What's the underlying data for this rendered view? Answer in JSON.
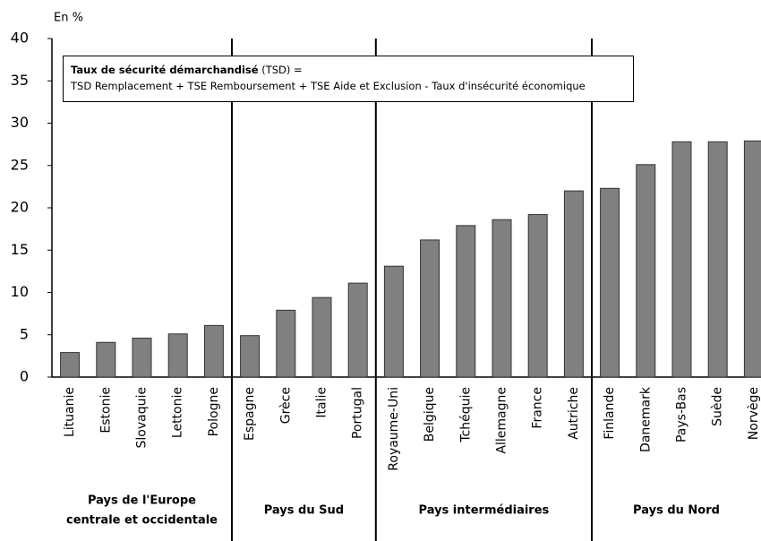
{
  "chart_data": {
    "type": "bar",
    "y_unit_label": "En %",
    "annotation": {
      "title": "Taux de sécurité démarchandisé",
      "title_suffix": "(TSD) =",
      "formula": "TSD Remplacement + TSE Remboursement + TSE Aide et Exclusion - Taux d'insécurité économique"
    },
    "categories": [
      "Lituanie",
      "Estonie",
      "Slovaquie",
      "Lettonie",
      "Pologne",
      "Espagne",
      "Grèce",
      "Italie",
      "Portugal",
      "Royaume-Uni",
      "Belgique",
      "Tchéquie",
      "Allemagne",
      "France",
      "Autriche",
      "Finlande",
      "Danemark",
      "Pays-Bas",
      "Suède",
      "Norvège"
    ],
    "values": [
      2.9,
      4.1,
      4.6,
      5.1,
      6.1,
      4.9,
      7.9,
      9.4,
      11.1,
      13.1,
      16.2,
      17.9,
      18.6,
      19.2,
      22.0,
      22.3,
      25.1,
      27.8,
      27.8,
      27.9
    ],
    "groups": [
      {
        "name": [
          "Pays de l'Europe",
          "centrale et occidentale"
        ],
        "size": 5
      },
      {
        "name": [
          "Pays du Sud"
        ],
        "size": 4
      },
      {
        "name": [
          "Pays intermédiaires"
        ],
        "size": 6
      },
      {
        "name": [
          "Pays du Nord"
        ],
        "size": 5
      }
    ],
    "color": "#808080",
    "ylim": [
      0,
      40
    ],
    "yticks": [
      0,
      5,
      10,
      15,
      20,
      25,
      30,
      35,
      40
    ],
    "grid": false
  }
}
